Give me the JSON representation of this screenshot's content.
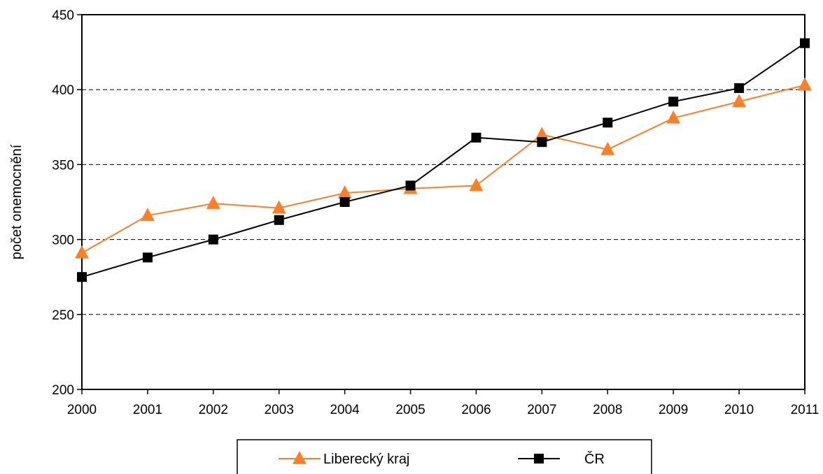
{
  "chart_data": {
    "type": "line",
    "title": "",
    "xlabel": "",
    "ylabel": "počet onemocnění",
    "categories": [
      "2000",
      "2001",
      "2002",
      "2003",
      "2004",
      "2005",
      "2006",
      "2007",
      "2008",
      "2009",
      "2010",
      "2011"
    ],
    "ylim": [
      200,
      450
    ],
    "yticks": [
      200,
      250,
      300,
      350,
      400,
      450
    ],
    "grid": "horizontal dashed",
    "legend_position": "bottom",
    "series": [
      {
        "name": "Liberecký kraj",
        "color": "#FF7F27",
        "marker": "triangle",
        "values": [
          291,
          316,
          324,
          321,
          331,
          334,
          336,
          370,
          360,
          381,
          392,
          403
        ]
      },
      {
        "name": "ČR",
        "color": "#000000",
        "marker": "square",
        "values": [
          275,
          288,
          300,
          313,
          325,
          336,
          368,
          365,
          378,
          392,
          401,
          431
        ]
      }
    ]
  }
}
